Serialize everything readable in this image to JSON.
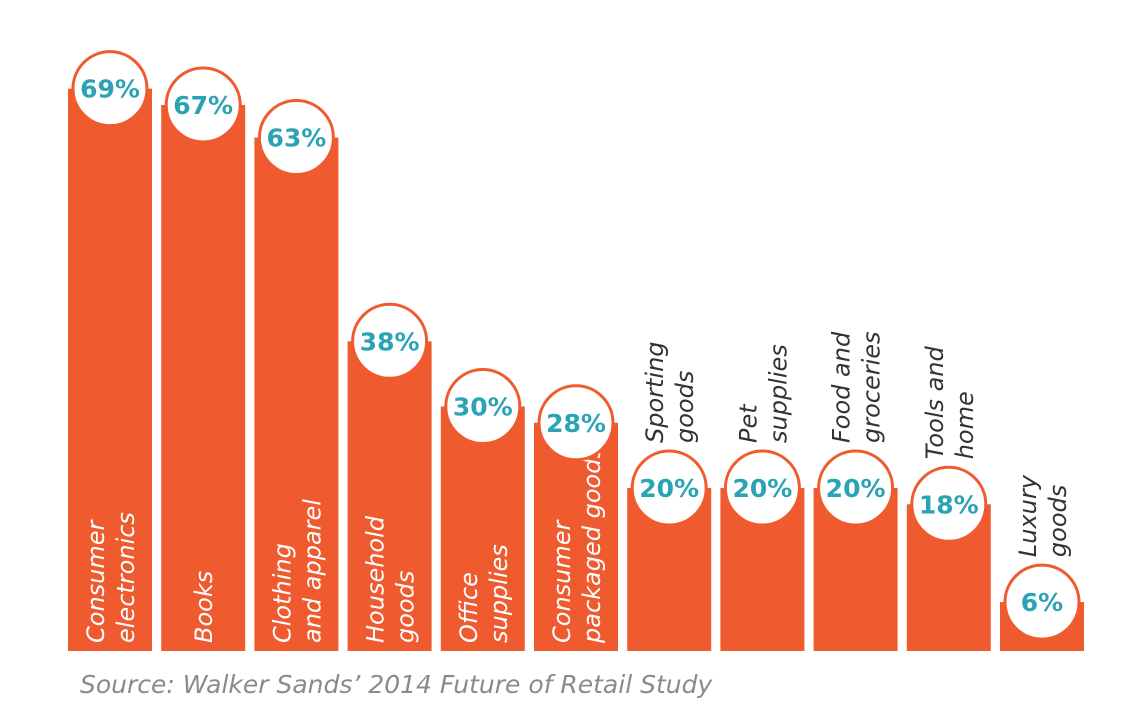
{
  "colors": {
    "bar": "#ef5a2f",
    "bubble_text": "#2aa3b5",
    "label_inside": "#ffffff",
    "label_outside": "#333333",
    "source": "#8a8a8a"
  },
  "chart_data": {
    "type": "bar",
    "title": "",
    "xlabel": "",
    "ylabel": "",
    "ylim": [
      0,
      75
    ],
    "grid": false,
    "legend": "none",
    "categories": [
      [
        "Consumer",
        "electronics"
      ],
      [
        "Books"
      ],
      [
        "Clothing",
        "and apparel"
      ],
      [
        "Household",
        "goods"
      ],
      [
        "Office",
        "supplies"
      ],
      [
        "Consumer",
        "packaged goods"
      ],
      [
        "Sporting",
        "goods"
      ],
      [
        "Pet",
        "supplies"
      ],
      [
        "Food and",
        "groceries"
      ],
      [
        "Tools and",
        "home"
      ],
      [
        "Luxury",
        "goods"
      ]
    ],
    "values": [
      69,
      67,
      63,
      38,
      30,
      28,
      20,
      20,
      20,
      18,
      6
    ],
    "value_labels": [
      "69%",
      "67%",
      "63%",
      "38%",
      "30%",
      "28%",
      "20%",
      "20%",
      "20%",
      "18%",
      "6%"
    ]
  },
  "source": "Source: Walker Sands’ 2014 Future of Retail Study"
}
